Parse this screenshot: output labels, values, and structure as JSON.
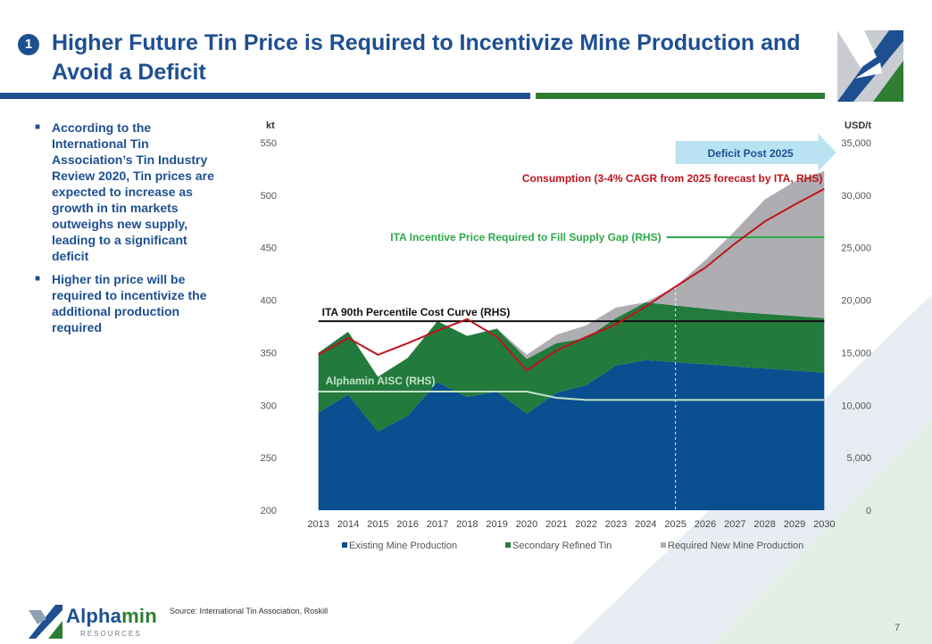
{
  "slide": {
    "number_badge": "1",
    "title": "Higher Future Tin Price is Required to Incentivize Mine Production and Avoid a Deficit",
    "bullets": [
      "According to the International Tin Association’s Tin Industry Review 2020, Tin prices are expected to increase as growth in tin markets outweighs new supply, leading to a significant deficit",
      "Higher tin price will be required to incentivize the additional production required"
    ],
    "source": "Source: International Tin Association, Roskill",
    "page_number": "7",
    "brand": {
      "name_part1": "Alpha",
      "name_part2": "min",
      "subtitle": "RESOURCES"
    },
    "colors": {
      "primary_blue": "#1d4f91",
      "primary_green": "#2e7d32"
    }
  },
  "chart_data": {
    "type": "area",
    "categories": [
      "2013",
      "2014",
      "2015",
      "2016",
      "2017",
      "2018",
      "2019",
      "2020",
      "2021",
      "2022",
      "2023",
      "2024",
      "2025",
      "2026",
      "2027",
      "2028",
      "2029",
      "2030"
    ],
    "left_axis": {
      "unit": "kt",
      "ylim": [
        200,
        550
      ],
      "ticks": [
        "200",
        "250",
        "300",
        "350",
        "400",
        "450",
        "500",
        "550"
      ]
    },
    "right_axis": {
      "unit": "USD/t",
      "ylim": [
        0,
        35000
      ],
      "ticks": [
        "0",
        "5,000",
        "10,000",
        "15,000",
        "20,000",
        "25,000",
        "30,000",
        "35,000"
      ]
    },
    "stacked_series": [
      {
        "name": "Existing Mine Production",
        "color": "#0a4f8f",
        "values": [
          293,
          310,
          275,
          290,
          322,
          308,
          313,
          292,
          312,
          319,
          338,
          343,
          341,
          339,
          337,
          335,
          333,
          331
        ]
      },
      {
        "name": "Secondary Refined Tin",
        "color": "#237a3d",
        "values": [
          57,
          60,
          52,
          55,
          58,
          58,
          60,
          52,
          47,
          45,
          45,
          55,
          54,
          53,
          52,
          52,
          52,
          52
        ]
      },
      {
        "name": "Required New Mine Production",
        "color": "#adadb2",
        "values": [
          0,
          0,
          0,
          0,
          0,
          0,
          0,
          4,
          8,
          12,
          10,
          0,
          18,
          46,
          77,
          109,
          128,
          140
        ]
      }
    ],
    "line_series": [
      {
        "name": "Consumption (3-4% CAGR from 2025 forecast by ITA, RHS)",
        "color": "#c0121c",
        "values": [
          14800,
          16400,
          14800,
          15900,
          17100,
          18200,
          16500,
          13300,
          15200,
          16500,
          17700,
          19400,
          21300,
          23100,
          25400,
          27500,
          29100,
          30600
        ]
      }
    ],
    "reference_lines": [
      {
        "label": "ITA 90th Percentile Cost Curve (RHS)",
        "color": "#111111",
        "value": 18000,
        "from": "2013",
        "to": "2030"
      },
      {
        "label": "ITA Incentive Price Required to Fill Supply Gap (RHS)",
        "color": "#2da84a",
        "value": 26000,
        "from": "2025",
        "to": "2030"
      }
    ],
    "aisc": {
      "label": "Alphamin AISC (RHS)",
      "color": "#bfe3c6",
      "values": [
        11300,
        11300,
        11300,
        11300,
        11300,
        11300,
        11300,
        11300,
        10700,
        10500,
        10500,
        10500,
        10500,
        10500,
        10500,
        10500,
        10500,
        10500
      ]
    },
    "deficit_arrow": {
      "label": "Deficit Post 2025",
      "start": "2025"
    },
    "legend": [
      "Existing Mine Production",
      "Secondary Refined Tin",
      "Required New Mine Production"
    ],
    "legend_position": "bottom"
  }
}
